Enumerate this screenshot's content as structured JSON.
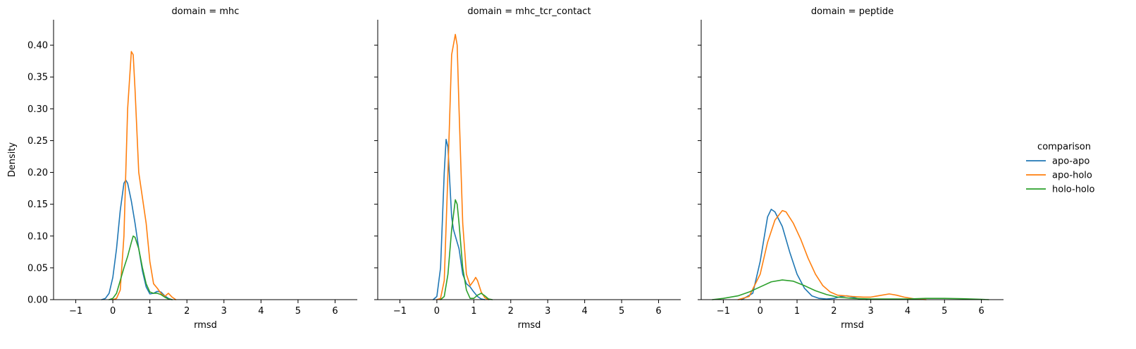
{
  "chart_data": {
    "type": "line",
    "ylabel": "Density",
    "xlabel": "rmsd",
    "xlim": [
      -1.6,
      6.6
    ],
    "ylim": [
      0,
      0.44
    ],
    "shared_y": true,
    "x_ticks": [
      -1,
      0,
      1,
      2,
      3,
      4,
      5,
      6
    ],
    "x_tick_labels": [
      "−1",
      "0",
      "1",
      "2",
      "3",
      "4",
      "5",
      "6"
    ],
    "y_ticks": [
      0,
      0.05,
      0.1,
      0.15,
      0.2,
      0.25,
      0.3,
      0.35,
      0.4
    ],
    "y_tick_labels": [
      "0.00",
      "0.05",
      "0.10",
      "0.15",
      "0.20",
      "0.25",
      "0.30",
      "0.35",
      "0.40"
    ],
    "legend": {
      "title": "comparison",
      "placement": "right",
      "entries": [
        {
          "name": "apo-apo",
          "color": "#1f77b4"
        },
        {
          "name": "apo-holo",
          "color": "#ff7f0e"
        },
        {
          "name": "holo-holo",
          "color": "#2ca02c"
        }
      ]
    },
    "panels": [
      {
        "title": "domain = mhc",
        "xlim": [
          -1.6,
          6.6
        ],
        "series": [
          {
            "name": "apo-apo",
            "color": "#1f77b4",
            "points": [
              [
                -0.3,
                0
              ],
              [
                -0.2,
                0.002
              ],
              [
                -0.1,
                0.01
              ],
              [
                0,
                0.035
              ],
              [
                0.1,
                0.08
              ],
              [
                0.2,
                0.14
              ],
              [
                0.3,
                0.183
              ],
              [
                0.35,
                0.188
              ],
              [
                0.4,
                0.183
              ],
              [
                0.5,
                0.155
              ],
              [
                0.6,
                0.12
              ],
              [
                0.7,
                0.08
              ],
              [
                0.8,
                0.045
              ],
              [
                0.9,
                0.02
              ],
              [
                1.0,
                0.009
              ],
              [
                1.1,
                0.01
              ],
              [
                1.2,
                0.013
              ],
              [
                1.3,
                0.012
              ],
              [
                1.4,
                0.006
              ],
              [
                1.5,
                0.002
              ],
              [
                1.6,
                0
              ]
            ]
          },
          {
            "name": "apo-holo",
            "color": "#ff7f0e",
            "points": [
              [
                0,
                0
              ],
              [
                0.1,
                0.002
              ],
              [
                0.2,
                0.015
              ],
              [
                0.3,
                0.1
              ],
              [
                0.4,
                0.3
              ],
              [
                0.5,
                0.39
              ],
              [
                0.55,
                0.385
              ],
              [
                0.6,
                0.33
              ],
              [
                0.7,
                0.2
              ],
              [
                0.8,
                0.16
              ],
              [
                0.9,
                0.12
              ],
              [
                1.0,
                0.06
              ],
              [
                1.1,
                0.025
              ],
              [
                1.2,
                0.018
              ],
              [
                1.3,
                0.01
              ],
              [
                1.4,
                0.005
              ],
              [
                1.5,
                0.01
              ],
              [
                1.6,
                0.004
              ],
              [
                1.7,
                0
              ]
            ]
          },
          {
            "name": "holo-holo",
            "color": "#2ca02c",
            "points": [
              [
                -0.1,
                0
              ],
              [
                0,
                0.002
              ],
              [
                0.1,
                0.01
              ],
              [
                0.2,
                0.03
              ],
              [
                0.3,
                0.05
              ],
              [
                0.4,
                0.068
              ],
              [
                0.5,
                0.09
              ],
              [
                0.55,
                0.1
              ],
              [
                0.6,
                0.098
              ],
              [
                0.7,
                0.08
              ],
              [
                0.8,
                0.05
              ],
              [
                0.9,
                0.025
              ],
              [
                1.0,
                0.012
              ],
              [
                1.1,
                0.01
              ],
              [
                1.2,
                0.01
              ],
              [
                1.3,
                0.008
              ],
              [
                1.4,
                0.004
              ],
              [
                1.5,
                0.001
              ],
              [
                1.6,
                0
              ]
            ]
          }
        ]
      },
      {
        "title": "domain = mhc_tcr_contact",
        "xlim": [
          -1.6,
          6.6
        ],
        "series": [
          {
            "name": "apo-apo",
            "color": "#1f77b4",
            "points": [
              [
                -0.1,
                0
              ],
              [
                0,
                0.005
              ],
              [
                0.1,
                0.05
              ],
              [
                0.2,
                0.2
              ],
              [
                0.25,
                0.252
              ],
              [
                0.3,
                0.24
              ],
              [
                0.4,
                0.13
              ],
              [
                0.45,
                0.11
              ],
              [
                0.5,
                0.1
              ],
              [
                0.6,
                0.08
              ],
              [
                0.7,
                0.04
              ],
              [
                0.8,
                0.025
              ],
              [
                0.9,
                0.02
              ],
              [
                1.0,
                0.012
              ],
              [
                1.1,
                0.005
              ],
              [
                1.2,
                0.001
              ],
              [
                1.3,
                0
              ]
            ]
          },
          {
            "name": "apo-holo",
            "color": "#ff7f0e",
            "points": [
              [
                0,
                0
              ],
              [
                0.1,
                0.002
              ],
              [
                0.2,
                0.03
              ],
              [
                0.3,
                0.2
              ],
              [
                0.4,
                0.385
              ],
              [
                0.5,
                0.417
              ],
              [
                0.55,
                0.4
              ],
              [
                0.6,
                0.3
              ],
              [
                0.7,
                0.12
              ],
              [
                0.8,
                0.04
              ],
              [
                0.9,
                0.022
              ],
              [
                1.0,
                0.03
              ],
              [
                1.05,
                0.035
              ],
              [
                1.1,
                0.03
              ],
              [
                1.2,
                0.012
              ],
              [
                1.3,
                0.003
              ],
              [
                1.4,
                0
              ]
            ]
          },
          {
            "name": "holo-holo",
            "color": "#2ca02c",
            "points": [
              [
                0.1,
                0
              ],
              [
                0.2,
                0.005
              ],
              [
                0.3,
                0.04
              ],
              [
                0.4,
                0.11
              ],
              [
                0.5,
                0.157
              ],
              [
                0.55,
                0.15
              ],
              [
                0.6,
                0.12
              ],
              [
                0.7,
                0.05
              ],
              [
                0.8,
                0.015
              ],
              [
                0.9,
                0.002
              ],
              [
                1.0,
                0.002
              ],
              [
                1.1,
                0.007
              ],
              [
                1.2,
                0.01
              ],
              [
                1.3,
                0.006
              ],
              [
                1.4,
                0.001
              ],
              [
                1.5,
                0
              ]
            ]
          }
        ]
      },
      {
        "title": "domain = peptide",
        "xlim": [
          -1.6,
          6.6
        ],
        "series": [
          {
            "name": "apo-apo",
            "color": "#1f77b4",
            "points": [
              [
                -0.5,
                0
              ],
              [
                -0.2,
                0.01
              ],
              [
                0,
                0.06
              ],
              [
                0.2,
                0.13
              ],
              [
                0.3,
                0.142
              ],
              [
                0.4,
                0.138
              ],
              [
                0.6,
                0.115
              ],
              [
                0.8,
                0.075
              ],
              [
                1.0,
                0.04
              ],
              [
                1.2,
                0.018
              ],
              [
                1.4,
                0.006
              ],
              [
                1.6,
                0.002
              ],
              [
                1.8,
                0.001
              ],
              [
                2.0,
                0.002
              ],
              [
                2.2,
                0.005
              ],
              [
                2.35,
                0.006
              ],
              [
                2.5,
                0.004
              ],
              [
                2.7,
                0.001
              ],
              [
                2.9,
                0
              ]
            ]
          },
          {
            "name": "apo-holo",
            "color": "#ff7f0e",
            "points": [
              [
                -0.6,
                0
              ],
              [
                -0.3,
                0.005
              ],
              [
                0,
                0.04
              ],
              [
                0.2,
                0.09
              ],
              [
                0.4,
                0.125
              ],
              [
                0.6,
                0.14
              ],
              [
                0.7,
                0.138
              ],
              [
                0.9,
                0.12
              ],
              [
                1.1,
                0.095
              ],
              [
                1.3,
                0.065
              ],
              [
                1.5,
                0.04
              ],
              [
                1.7,
                0.022
              ],
              [
                1.9,
                0.012
              ],
              [
                2.1,
                0.007
              ],
              [
                2.3,
                0.006
              ],
              [
                2.5,
                0.005
              ],
              [
                2.8,
                0.004
              ],
              [
                3.0,
                0.004
              ],
              [
                3.2,
                0.006
              ],
              [
                3.5,
                0.009
              ],
              [
                3.7,
                0.007
              ],
              [
                3.9,
                0.004
              ],
              [
                4.2,
                0.001
              ],
              [
                4.5,
                0
              ]
            ]
          },
          {
            "name": "holo-holo",
            "color": "#2ca02c",
            "points": [
              [
                -1.3,
                0
              ],
              [
                -1.0,
                0.002
              ],
              [
                -0.6,
                0.006
              ],
              [
                -0.3,
                0.012
              ],
              [
                0,
                0.02
              ],
              [
                0.3,
                0.028
              ],
              [
                0.6,
                0.031
              ],
              [
                0.9,
                0.029
              ],
              [
                1.2,
                0.022
              ],
              [
                1.5,
                0.014
              ],
              [
                1.8,
                0.008
              ],
              [
                2.1,
                0.004
              ],
              [
                2.5,
                0.002
              ],
              [
                3.0,
                0.001
              ],
              [
                3.5,
                0.001
              ],
              [
                4.0,
                0.001
              ],
              [
                4.5,
                0.002
              ],
              [
                5.0,
                0.002
              ],
              [
                5.5,
                0.0015
              ],
              [
                6.0,
                0.0005
              ],
              [
                6.2,
                0
              ]
            ]
          }
        ]
      }
    ]
  }
}
